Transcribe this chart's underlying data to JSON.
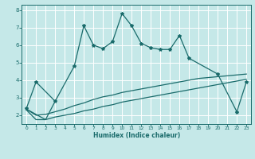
{
  "xlabel": "Humidex (Indice chaleur)",
  "bg_color": "#c5e8e8",
  "grid_color": "#ffffff",
  "line_color": "#1a6b6b",
  "line1_x": [
    0,
    1,
    3,
    5,
    6,
    7,
    8,
    9,
    10,
    11,
    12,
    13,
    14,
    15,
    16,
    17,
    20,
    22,
    23
  ],
  "line1_y": [
    2.4,
    3.9,
    2.8,
    4.8,
    7.1,
    6.0,
    5.8,
    6.2,
    7.8,
    7.1,
    6.1,
    5.85,
    5.75,
    5.75,
    6.55,
    5.25,
    4.35,
    2.2,
    3.9
  ],
  "line2_x": [
    0,
    2,
    3
  ],
  "line2_y": [
    2.35,
    1.75,
    2.8
  ],
  "lower_x": [
    0,
    1,
    2,
    3,
    4,
    5,
    6,
    7,
    8,
    9,
    10,
    11,
    12,
    13,
    14,
    15,
    16,
    17,
    18,
    19,
    20,
    21,
    22,
    23
  ],
  "lower_bottom": [
    2.3,
    1.75,
    1.75,
    1.9,
    2.0,
    2.1,
    2.25,
    2.35,
    2.5,
    2.6,
    2.75,
    2.85,
    2.95,
    3.05,
    3.15,
    3.25,
    3.35,
    3.45,
    3.55,
    3.65,
    3.75,
    3.85,
    3.95,
    4.05
  ],
  "lower_top": [
    2.35,
    2.0,
    2.05,
    2.2,
    2.35,
    2.55,
    2.7,
    2.9,
    3.05,
    3.15,
    3.3,
    3.4,
    3.5,
    3.6,
    3.7,
    3.8,
    3.9,
    4.0,
    4.1,
    4.15,
    4.2,
    4.25,
    4.3,
    4.35
  ],
  "ylim": [
    1.5,
    8.3
  ],
  "xlim": [
    -0.5,
    23.5
  ],
  "yticks": [
    2,
    3,
    4,
    5,
    6,
    7,
    8
  ],
  "xticks": [
    0,
    1,
    2,
    3,
    4,
    5,
    6,
    7,
    8,
    9,
    10,
    11,
    12,
    13,
    14,
    15,
    16,
    17,
    18,
    19,
    20,
    21,
    22,
    23
  ],
  "xlabel_fontsize": 5.5,
  "tick_fontsize": 4.2,
  "ytick_fontsize": 5.0,
  "linewidth": 0.9,
  "marker_size": 3.0
}
